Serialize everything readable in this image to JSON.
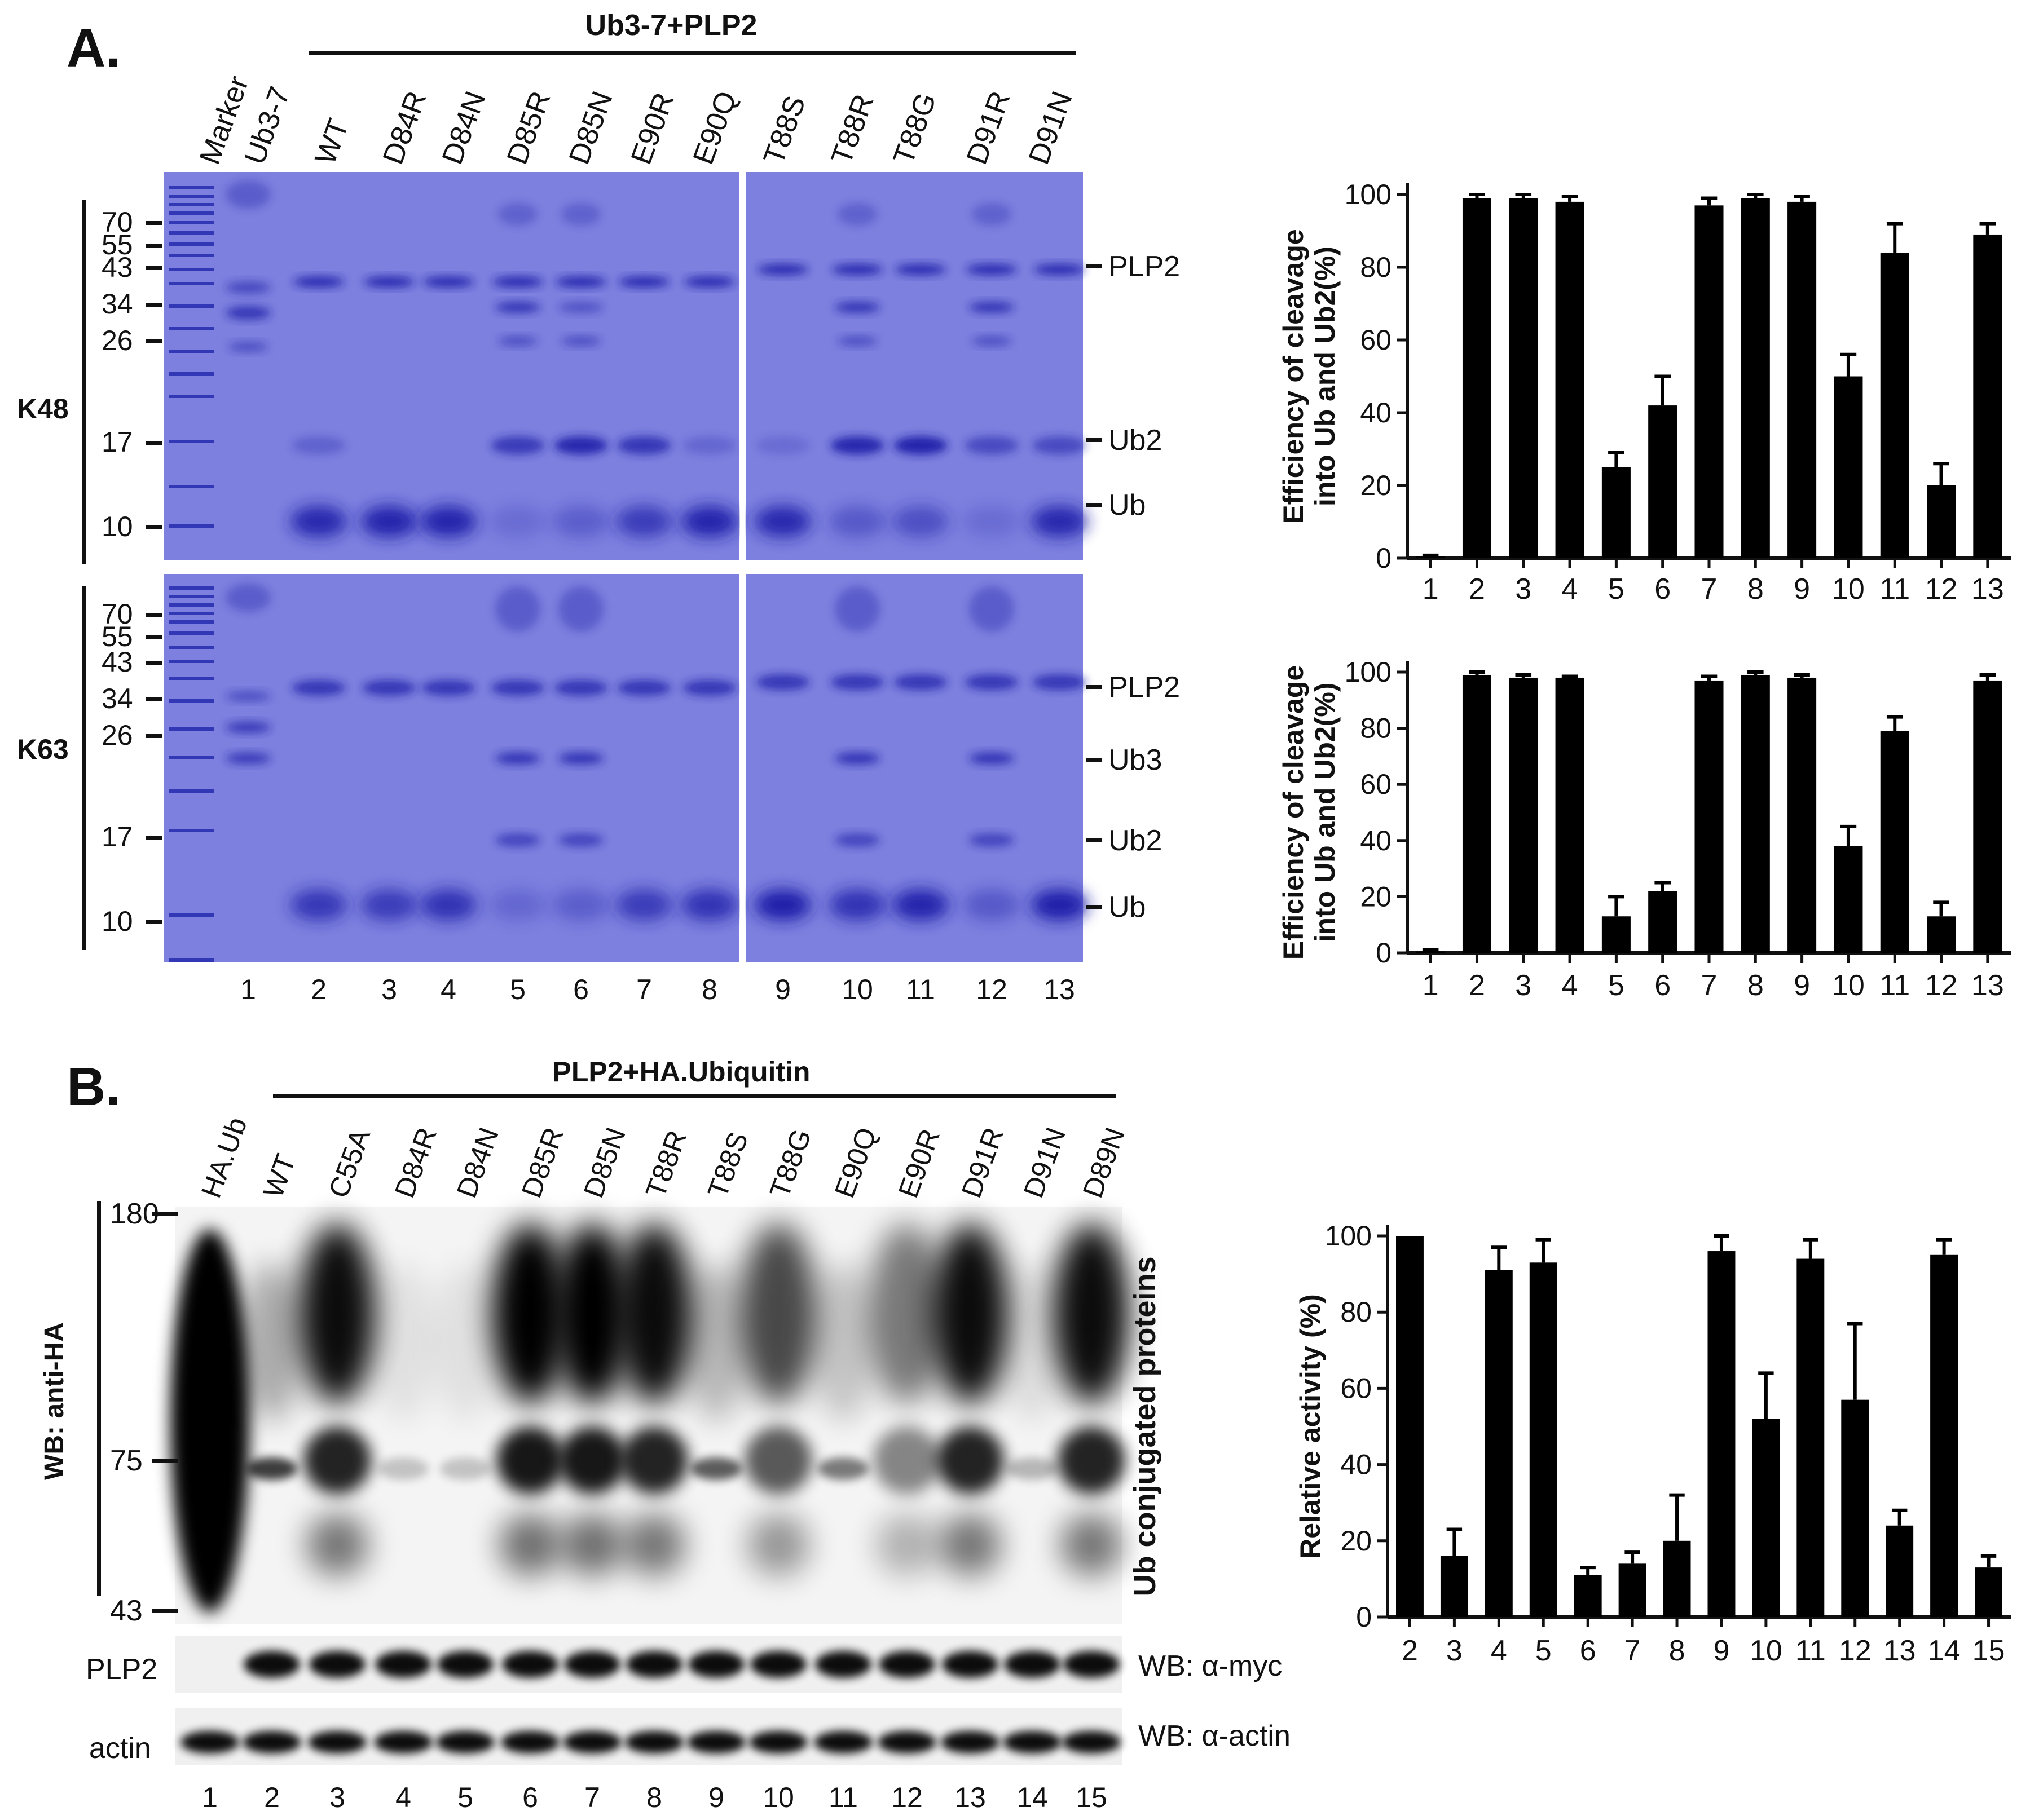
{
  "panelA": {
    "label": "A.",
    "header": "Ub3-7+PLP2",
    "gel_lanes": [
      "Marker",
      "Ub3-7",
      "WT",
      "D84R",
      "D84N",
      "D85R",
      "D85N",
      "E90R",
      "E90Q",
      "T88S",
      "T88R",
      "T88G",
      "D91R",
      "D91N"
    ],
    "lane_numbers": [
      "1",
      "2",
      "3",
      "4",
      "5",
      "6",
      "7",
      "8",
      "9",
      "10",
      "11",
      "12",
      "13"
    ],
    "k48": {
      "side_label": "K48",
      "mw_markers": [
        "70",
        "55",
        "43",
        "34",
        "26",
        "17",
        "10"
      ],
      "band_labels": [
        "PLP2",
        "Ub2",
        "Ub"
      ]
    },
    "k63": {
      "side_label": "K63",
      "mw_markers": [
        "70",
        "55",
        "43",
        "34",
        "26",
        "17",
        "10"
      ],
      "band_labels": [
        "PLP2",
        "Ub3",
        "Ub2",
        "Ub"
      ]
    }
  },
  "panelB": {
    "label": "B.",
    "header": "PLP2+HA.Ubiquitin",
    "gel_lanes": [
      "HA.Ub",
      "WT",
      "C55A",
      "D84R",
      "D84N",
      "D85R",
      "D85N",
      "T88R",
      "T88S",
      "T88G",
      "E90Q",
      "E90R",
      "D91R",
      "D91N",
      "D89N"
    ],
    "lane_numbers": [
      "1",
      "2",
      "3",
      "4",
      "5",
      "6",
      "7",
      "8",
      "9",
      "10",
      "11",
      "12",
      "13",
      "14",
      "15"
    ],
    "wb_label": "WB: anti-HA",
    "mw_markers": [
      "180",
      "75",
      "43"
    ],
    "conj_label": "Ub conjugated proteins",
    "plp2_row": "PLP2",
    "actin_row": "actin",
    "wb_myc": "WB: α-myc",
    "wb_actin": "WB: α-actin"
  },
  "chart_data": [
    {
      "type": "bar",
      "ylabel": "Efficiency  of cleavage into Ub and Ub2(%)",
      "ylim": [
        0,
        100
      ],
      "yticks": [
        "0",
        "20",
        "40",
        "60",
        "80",
        "100"
      ],
      "categories": [
        "1",
        "2",
        "3",
        "4",
        "5",
        "6",
        "7",
        "8",
        "9",
        "10",
        "11",
        "12",
        "13"
      ],
      "values": [
        0.5,
        99,
        99,
        98,
        25,
        42,
        97,
        99,
        98,
        50,
        84,
        20,
        89
      ],
      "errors": [
        0.3,
        1,
        1,
        1.5,
        4,
        8,
        2,
        1,
        1.5,
        6,
        8,
        6,
        3
      ]
    },
    {
      "type": "bar",
      "ylabel": "Efficiency  of cleavage into Ub and Ub2(%)",
      "ylim": [
        0,
        100
      ],
      "yticks": [
        "0",
        "20",
        "40",
        "60",
        "80",
        "100"
      ],
      "categories": [
        "1",
        "2",
        "3",
        "4",
        "5",
        "6",
        "7",
        "8",
        "9",
        "10",
        "11",
        "12",
        "13"
      ],
      "values": [
        0.5,
        99,
        98,
        98,
        13,
        22,
        97,
        99,
        98,
        38,
        79,
        13,
        97
      ],
      "errors": [
        0.5,
        1,
        1,
        0.5,
        7,
        3,
        1.5,
        1,
        1,
        7,
        5,
        5,
        2
      ]
    },
    {
      "type": "bar",
      "ylabel": "Relative activity  (%)",
      "ylim": [
        0,
        100
      ],
      "yticks": [
        "0",
        "20",
        "40",
        "60",
        "80",
        "100"
      ],
      "categories": [
        "2",
        "3",
        "4",
        "5",
        "6",
        "7",
        "8",
        "9",
        "10",
        "11",
        "12",
        "13",
        "14",
        "15"
      ],
      "values": [
        100,
        16,
        91,
        93,
        11,
        14,
        20,
        96,
        52,
        94,
        57,
        24,
        95,
        13
      ],
      "errors": [
        0,
        7,
        6,
        6,
        2,
        3,
        12,
        4,
        12,
        5,
        20,
        4,
        4,
        3
      ]
    }
  ]
}
